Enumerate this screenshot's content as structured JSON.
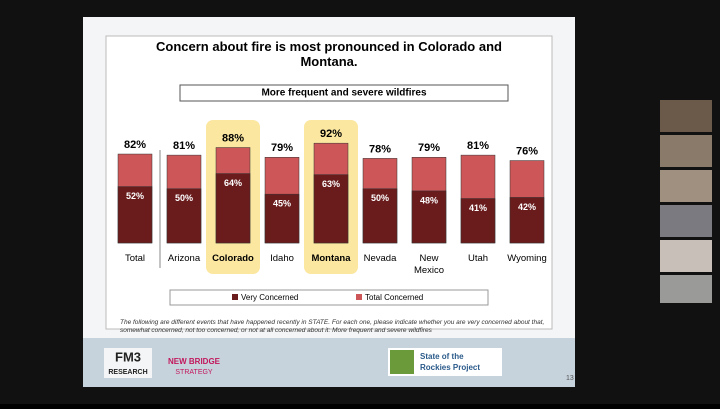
{
  "chart_data": {
    "type": "bar",
    "title": "Concern about fire is most pronounced in Colorado and Montana.",
    "subtitle": "More frequent and severe wildfires",
    "categories": [
      "Total",
      "Arizona",
      "Colorado",
      "Idaho",
      "Montana",
      "Nevada",
      "New Mexico",
      "Utah",
      "Wyoming"
    ],
    "series": [
      {
        "name": "Total Concerned",
        "color": "#cd5658",
        "values": [
          82,
          81,
          88,
          79,
          92,
          78,
          79,
          81,
          76
        ],
        "value_labels": [
          "82%",
          "81%",
          "88%",
          "79%",
          "92%",
          "78%",
          "79%",
          "81%",
          "76%"
        ]
      },
      {
        "name": "Very Concerned",
        "color": "#6a1c1d",
        "values": [
          52,
          50,
          64,
          45,
          63,
          50,
          48,
          41,
          42
        ],
        "value_labels": [
          "52%",
          "50%",
          "64%",
          "45%",
          "63%",
          "50%",
          "48%",
          "41%",
          "42%"
        ]
      }
    ],
    "legend_order": [
      1,
      0
    ],
    "highlight": [
      2,
      4
    ],
    "highlight_color": "#fbe7a0",
    "footnote": "The following are different events that have happened recently in STATE. For each one, please indicate whether you are very concerned about that, somewhat concerned, not too concerned, or not at all concerned about it: More frequent and severe wildfires",
    "page_number": "13"
  },
  "logos": {
    "fm3_top": "FM3",
    "fm3_bottom": "RESEARCH",
    "newbridge_top": "NEW BRIDGE",
    "newbridge_bottom": "STRATEGY",
    "rockies_line1": "State of the",
    "rockies_line2": "Rockies Project"
  }
}
